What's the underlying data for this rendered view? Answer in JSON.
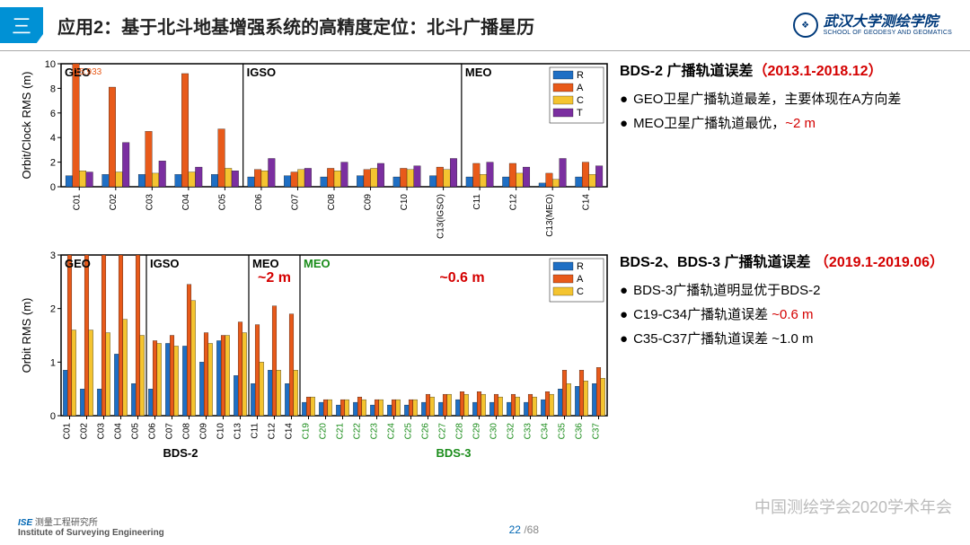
{
  "header": {
    "icon": "三",
    "title": "应用2：基于北斗地基增强系统的高精度定位：北斗广播星历",
    "logo_main": "武汉大学测绘学院",
    "logo_sub": "SCHOOL OF GEODESY AND GEOMATICS"
  },
  "colors": {
    "R": "#1f6fc4",
    "A": "#e85a1a",
    "C": "#f4c430",
    "T": "#7b2fa0",
    "axis": "#000000",
    "grid": "#cccccc",
    "green": "#1a8c1a",
    "red": "#d40000"
  },
  "chart1": {
    "type": "grouped-bar",
    "ylabel": "Orbit/Clock RMS (m)",
    "ylim": [
      0,
      10
    ],
    "ytick_step": 2,
    "annot": "15.933",
    "sections": [
      {
        "label": "GEO",
        "start": 0,
        "end": 5
      },
      {
        "label": "IGSO",
        "start": 5,
        "end": 11
      },
      {
        "label": "MEO",
        "start": 11,
        "end": 15
      }
    ],
    "categories": [
      "C01",
      "C02",
      "C03",
      "C04",
      "C05",
      "C06",
      "C07",
      "C08",
      "C09",
      "C10",
      "C13(IGSO)",
      "C11",
      "C12",
      "C13(MEO)",
      "C14"
    ],
    "series": [
      {
        "name": "R",
        "color": "#1f6fc4",
        "values": [
          0.9,
          1.0,
          1.0,
          1.0,
          1.0,
          0.8,
          0.9,
          0.8,
          0.9,
          0.8,
          0.9,
          0.8,
          0.8,
          0.3,
          0.8
        ]
      },
      {
        "name": "A",
        "color": "#e85a1a",
        "values": [
          15.9,
          8.1,
          4.5,
          9.2,
          4.7,
          1.4,
          1.2,
          1.5,
          1.4,
          1.5,
          1.6,
          1.9,
          1.9,
          1.1,
          2.0
        ]
      },
      {
        "name": "C",
        "color": "#f4c430",
        "values": [
          1.3,
          1.2,
          1.1,
          1.2,
          1.5,
          1.3,
          1.4,
          1.3,
          1.5,
          1.4,
          1.4,
          1.0,
          1.1,
          0.6,
          1.0
        ]
      },
      {
        "name": "T",
        "color": "#7b2fa0",
        "values": [
          1.2,
          3.6,
          2.1,
          1.6,
          1.3,
          2.3,
          1.5,
          2.0,
          1.9,
          1.7,
          2.3,
          2.0,
          1.6,
          2.3,
          1.7
        ]
      }
    ],
    "legend": [
      "R",
      "A",
      "C",
      "T"
    ]
  },
  "chart2": {
    "type": "grouped-bar",
    "ylabel": "Orbit RMS (m)",
    "ylim": [
      0,
      3
    ],
    "ytick_step": 1,
    "sections": [
      {
        "label": "GEO",
        "start": 0,
        "end": 5,
        "color": "#000"
      },
      {
        "label": "IGSO",
        "start": 5,
        "end": 11,
        "color": "#000"
      },
      {
        "label": "MEO",
        "start": 11,
        "end": 14,
        "color": "#000",
        "annot": "~2 m",
        "annot_color": "#d40000"
      },
      {
        "label": "MEO",
        "start": 14,
        "end": 33,
        "color": "#1a8c1a",
        "annot": "~0.6 m",
        "annot_color": "#d40000"
      }
    ],
    "axis_labels": [
      {
        "label": "BDS-2",
        "pos": 7,
        "color": "#000"
      },
      {
        "label": "BDS-3",
        "pos": 23,
        "color": "#1a8c1a"
      }
    ],
    "categories": [
      "C01",
      "C02",
      "C03",
      "C04",
      "C05",
      "C06",
      "C07",
      "C08",
      "C09",
      "C10",
      "C13",
      "C11",
      "C12",
      "C14",
      "C19",
      "C20",
      "C21",
      "C22",
      "C23",
      "C24",
      "C25",
      "C26",
      "C27",
      "C28",
      "C29",
      "C30",
      "C32",
      "C33",
      "C34",
      "C35",
      "C36",
      "C37"
    ],
    "cat_colors": [
      "#000",
      "#000",
      "#000",
      "#000",
      "#000",
      "#000",
      "#000",
      "#000",
      "#000",
      "#000",
      "#000",
      "#000",
      "#000",
      "#000",
      "#1a8c1a",
      "#1a8c1a",
      "#1a8c1a",
      "#1a8c1a",
      "#1a8c1a",
      "#1a8c1a",
      "#1a8c1a",
      "#1a8c1a",
      "#1a8c1a",
      "#1a8c1a",
      "#1a8c1a",
      "#1a8c1a",
      "#1a8c1a",
      "#1a8c1a",
      "#1a8c1a",
      "#1a8c1a",
      "#1a8c1a",
      "#1a8c1a"
    ],
    "series": [
      {
        "name": "R",
        "color": "#1f6fc4",
        "values": [
          0.85,
          0.5,
          0.5,
          1.15,
          0.6,
          0.5,
          1.35,
          1.3,
          1.0,
          1.4,
          0.75,
          0.6,
          0.85,
          0.6,
          0.25,
          0.25,
          0.2,
          0.25,
          0.2,
          0.2,
          0.2,
          0.25,
          0.25,
          0.3,
          0.25,
          0.25,
          0.25,
          0.25,
          0.3,
          0.5,
          0.55,
          0.6
        ]
      },
      {
        "name": "A",
        "color": "#e85a1a",
        "values": [
          3.0,
          3.0,
          3.0,
          3.0,
          3.0,
          1.4,
          1.5,
          2.45,
          1.55,
          1.5,
          1.75,
          1.7,
          2.05,
          1.9,
          0.35,
          0.3,
          0.3,
          0.35,
          0.3,
          0.3,
          0.3,
          0.4,
          0.4,
          0.45,
          0.45,
          0.4,
          0.4,
          0.4,
          0.45,
          0.85,
          0.85,
          0.9
        ]
      },
      {
        "name": "C",
        "color": "#f4c430",
        "values": [
          1.6,
          1.6,
          1.55,
          1.8,
          1.5,
          1.35,
          1.3,
          2.15,
          1.35,
          1.5,
          1.55,
          1.0,
          0.85,
          0.85,
          0.35,
          0.3,
          0.3,
          0.3,
          0.3,
          0.3,
          0.3,
          0.35,
          0.4,
          0.4,
          0.4,
          0.35,
          0.35,
          0.35,
          0.4,
          0.6,
          0.65,
          0.7
        ]
      }
    ],
    "legend": [
      "R",
      "A",
      "C"
    ]
  },
  "text1": {
    "title_pre": "BDS-2 广播轨道误差",
    "title_red": "（2013.1-2018.12）",
    "bullets": [
      {
        "text": "GEO卫星广播轨道最差，主要体现在A方向差"
      },
      {
        "text": "MEO卫星广播轨道最优，",
        "red": "~2 m"
      }
    ]
  },
  "text2": {
    "title_pre": "BDS-2、BDS-3 广播轨道误差 ",
    "title_red": "（2019.1-2019.06）",
    "bullets": [
      {
        "text": "BDS-3广播轨道明显优于BDS-2"
      },
      {
        "text": "C19-C34广播轨道误差 ",
        "red": "~0.6 m"
      },
      {
        "text": "C35-C37广播轨道误差 ~1.0 m"
      }
    ]
  },
  "footer": {
    "ise": "ISE",
    "inst_cn": "测量工程研究所",
    "inst_en": "Institute of Surveying Engineering",
    "conf": "中国测绘学会2020学术年会",
    "page_cur": "22",
    "page_total": "/68"
  }
}
